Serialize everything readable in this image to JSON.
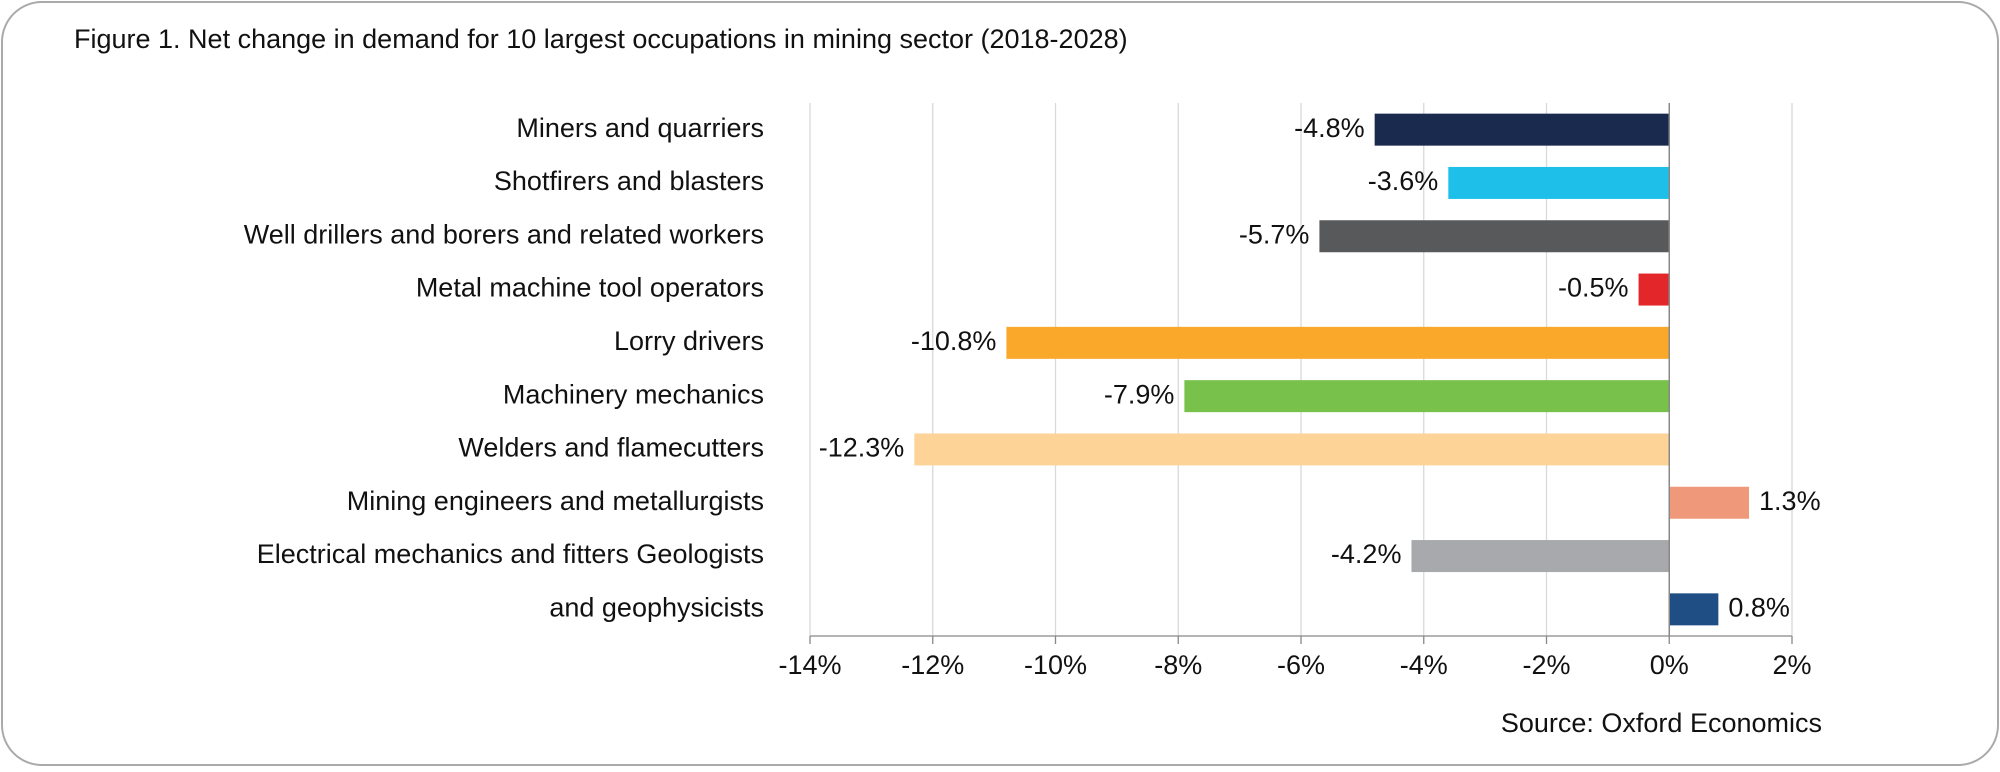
{
  "chart_data": {
    "type": "barh",
    "title": "Figure 1. Net change in demand for 10 largest occupations in mining sector (2018-2028)",
    "source": "Source: Oxford Economics",
    "categories": [
      "Miners and quarriers",
      "Shotfirers and blasters",
      "Well drillers and borers and related workers",
      "Metal machine tool operators",
      "Lorry drivers",
      "Machinery mechanics",
      "Welders and flamecutters",
      "Mining engineers and metallurgists",
      "Electrical mechanics and fitters Geologists",
      "and geophysicists"
    ],
    "values": [
      -4.8,
      -3.6,
      -5.7,
      -0.5,
      -10.8,
      -7.9,
      -12.3,
      1.3,
      -4.2,
      0.8
    ],
    "value_labels": [
      "-4.8%",
      "-3.6%",
      "-5.7%",
      "-0.5%",
      "-10.8%",
      "-7.9%",
      "-12.3%",
      "1.3%",
      "-4.2%",
      "0.8%"
    ],
    "colors": [
      "#1a2a4f",
      "#1ec0ea",
      "#58595b",
      "#e3262a",
      "#f9a82a",
      "#78c14a",
      "#fdd398",
      "#f0987a",
      "#a7a9ac",
      "#1f4e85"
    ],
    "xlim": [
      -14,
      2
    ],
    "xticks": [
      {
        "value": -14,
        "label": "-14%"
      },
      {
        "value": -12,
        "label": "-12%"
      },
      {
        "value": -10,
        "label": "-10%"
      },
      {
        "value": -8,
        "label": "-8%"
      },
      {
        "value": -6,
        "label": "-6%"
      },
      {
        "value": -4,
        "label": "-4%"
      },
      {
        "value": -2,
        "label": "-2%"
      },
      {
        "value": 0,
        "label": "0%"
      },
      {
        "value": 2,
        "label": "2%"
      }
    ],
    "grid": true
  }
}
